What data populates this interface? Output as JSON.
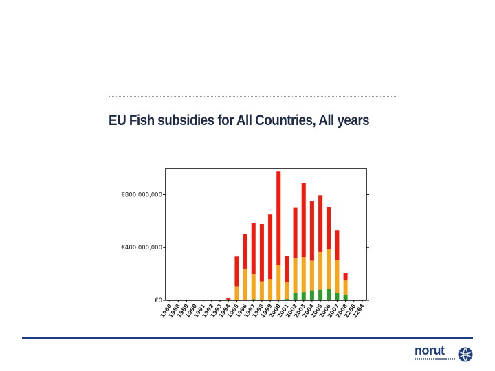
{
  "slide": {
    "title": "EU Fish subsidies for All Countries, All years"
  },
  "logo": {
    "word": "norut",
    "icon": "globe-icon"
  },
  "colors": {
    "red": "#ee1c0e",
    "orange": "#f7a51c",
    "green": "#2e9a2a",
    "axis": "#000000",
    "rule": "#1f3d7a"
  },
  "chart_data": {
    "type": "bar",
    "stacked": true,
    "grid": false,
    "ylim": [
      0,
      1000000000
    ],
    "yticks": [
      {
        "value": 0,
        "label": "€0"
      },
      {
        "value": 400000000,
        "label": "€400,000,000"
      },
      {
        "value": 800000000,
        "label": "€800,000,000"
      }
    ],
    "categories": [
      "1968",
      "1988",
      "1989",
      "1990",
      "1991",
      "1992",
      "1993",
      "1994",
      "1995",
      "1996",
      "1997",
      "1998",
      "1999",
      "2000",
      "2001",
      "2002",
      "2003",
      "2004",
      "2005",
      "2006",
      "2007",
      "2008",
      "2256",
      "2264"
    ],
    "series": [
      {
        "color": "#2e9a2a",
        "values": [
          0,
          0,
          0,
          0,
          0,
          0,
          0,
          0,
          2000000,
          5000000,
          8000000,
          3000000,
          5000000,
          3000000,
          10000000,
          55000000,
          62000000,
          75000000,
          80000000,
          85000000,
          55000000,
          40000000,
          0,
          0
        ]
      },
      {
        "color": "#f7a51c",
        "values": [
          0,
          0,
          0,
          0,
          0,
          0,
          0,
          0,
          100000000,
          235000000,
          190000000,
          140000000,
          155000000,
          265000000,
          125000000,
          265000000,
          265000000,
          225000000,
          285000000,
          300000000,
          250000000,
          110000000,
          0,
          0
        ]
      },
      {
        "color": "#ee1c0e",
        "values": [
          0,
          0,
          0,
          0,
          0,
          0,
          0,
          15000000,
          230000000,
          260000000,
          390000000,
          435000000,
          490000000,
          710000000,
          200000000,
          380000000,
          560000000,
          450000000,
          430000000,
          320000000,
          225000000,
          55000000,
          0,
          0
        ]
      }
    ]
  }
}
